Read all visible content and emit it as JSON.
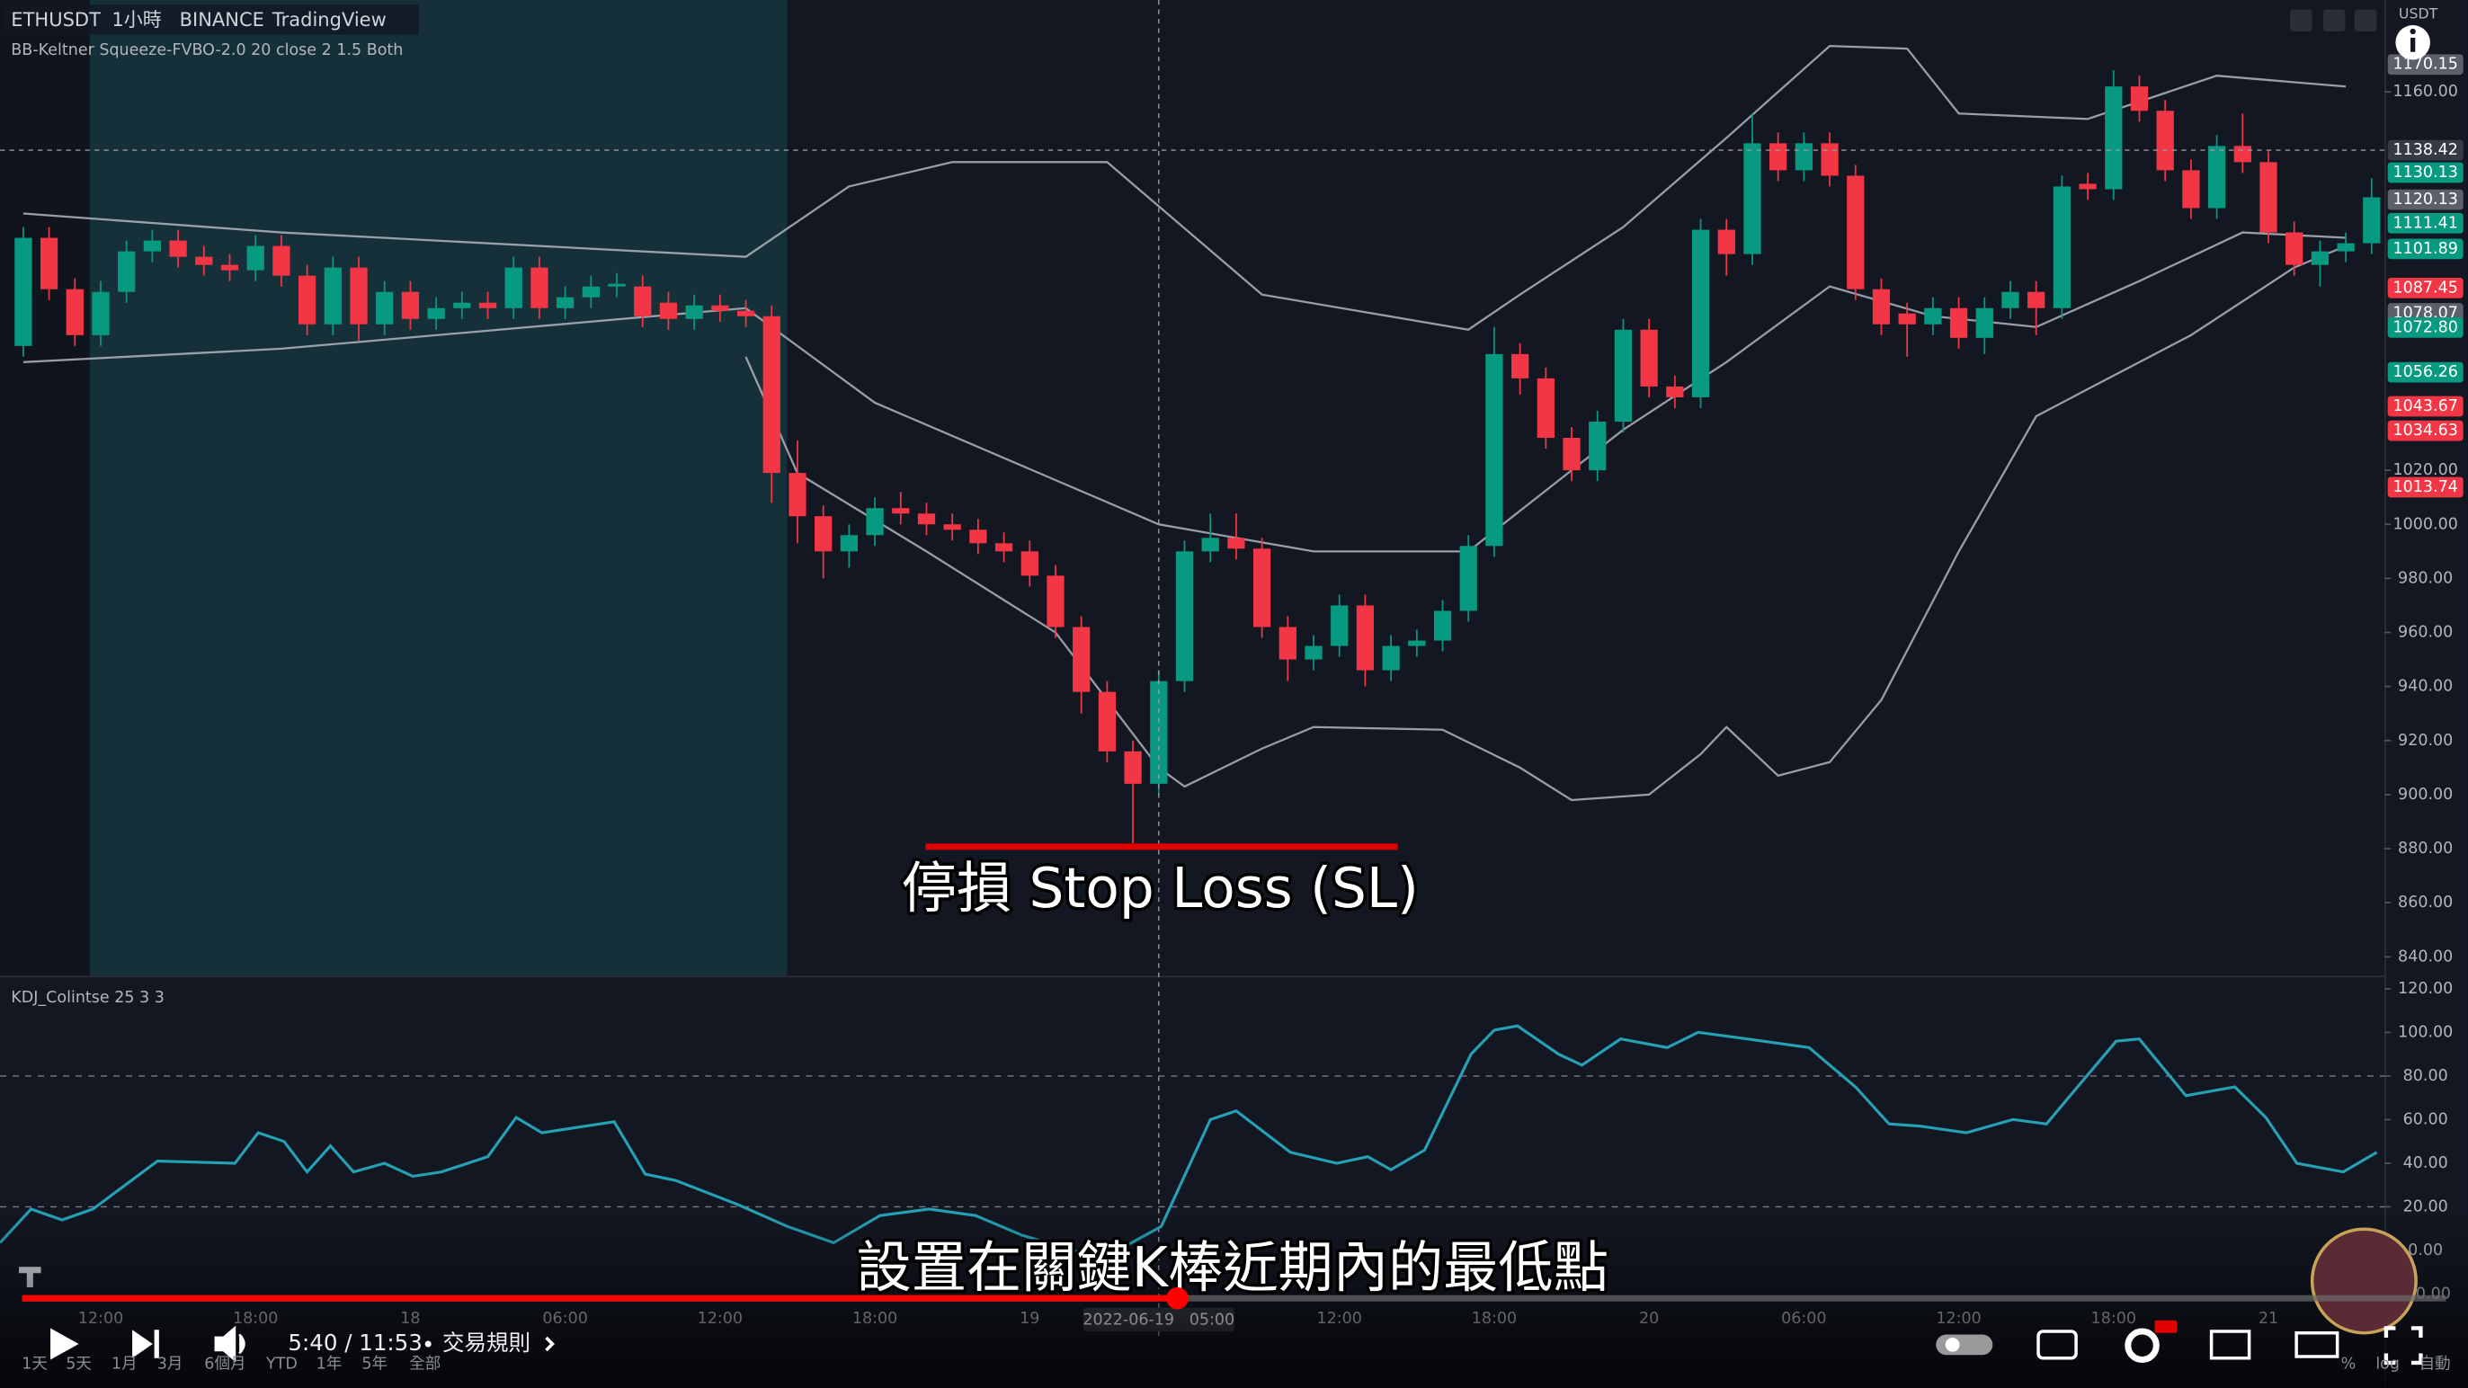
{
  "header": {
    "symbol": "ETHUSDT",
    "interval": "1小時",
    "exchange": "BINANCE",
    "source": "TradingView",
    "indicator": "BB-Keltner Squeeze-FVBO-2.0 20 close 2 1.5 Both",
    "currency": "USDT"
  },
  "chart_data": [
    {
      "type": "candlestick",
      "up_color": "#089981",
      "down_color": "#f23645",
      "open": [
        1066,
        1106,
        1087,
        1070,
        1086,
        1101,
        1105,
        1099,
        1096,
        1094,
        1103,
        1092,
        1074,
        1095,
        1074,
        1086,
        1076,
        1080,
        1082,
        1080,
        1095,
        1080,
        1084,
        1088,
        1088,
        1082,
        1076,
        1081,
        1079,
        1077,
        1019,
        1003,
        990,
        996,
        1006,
        1004,
        1000,
        998,
        993,
        990,
        981,
        962,
        938,
        916,
        904,
        942,
        990,
        995,
        991,
        962,
        950,
        955,
        970,
        946,
        955,
        957,
        968,
        992,
        1063,
        1054,
        1032,
        1020,
        1038,
        1072,
        1051,
        1047,
        1109,
        1100,
        1141,
        1131,
        1141,
        1129,
        1087,
        1078,
        1074,
        1080,
        1069,
        1080,
        1086,
        1080,
        1126,
        1124,
        1162,
        1153,
        1131,
        1117,
        1140,
        1134,
        1108,
        1096,
        1101,
        1104
      ],
      "high": [
        1110,
        1110,
        1091,
        1090,
        1105,
        1109,
        1109,
        1103,
        1100,
        1107,
        1107,
        1096,
        1099,
        1099,
        1090,
        1090,
        1084,
        1086,
        1086,
        1099,
        1099,
        1088,
        1092,
        1093,
        1092,
        1086,
        1085,
        1085,
        1083,
        1081,
        1031,
        1007,
        1000,
        1010,
        1012,
        1008,
        1004,
        1002,
        997,
        994,
        985,
        966,
        942,
        920,
        946,
        994,
        1004,
        1004,
        995,
        966,
        959,
        974,
        974,
        959,
        961,
        972,
        996,
        1073,
        1067,
        1058,
        1036,
        1042,
        1076,
        1076,
        1055,
        1113,
        1113,
        1152,
        1145,
        1145,
        1145,
        1133,
        1091,
        1082,
        1084,
        1084,
        1084,
        1090,
        1090,
        1129,
        1130,
        1168,
        1166,
        1157,
        1135,
        1144,
        1152,
        1138,
        1112,
        1105,
        1108,
        1128
      ],
      "low": [
        1062,
        1083,
        1066,
        1066,
        1082,
        1097,
        1095,
        1092,
        1090,
        1090,
        1088,
        1070,
        1070,
        1068,
        1070,
        1072,
        1072,
        1076,
        1076,
        1076,
        1076,
        1076,
        1080,
        1084,
        1073,
        1072,
        1072,
        1075,
        1073,
        1008,
        993,
        980,
        984,
        992,
        1000,
        996,
        994,
        989,
        986,
        977,
        958,
        930,
        912,
        882,
        900,
        938,
        986,
        987,
        958,
        942,
        946,
        951,
        940,
        942,
        951,
        953,
        964,
        988,
        1048,
        1028,
        1016,
        1016,
        1034,
        1047,
        1043,
        1043,
        1092,
        1096,
        1127,
        1127,
        1125,
        1083,
        1070,
        1062,
        1070,
        1065,
        1063,
        1076,
        1070,
        1076,
        1120,
        1120,
        1149,
        1127,
        1113,
        1113,
        1130,
        1104,
        1092,
        1088,
        1097,
        1100
      ],
      "close": [
        1106,
        1087,
        1070,
        1086,
        1101,
        1105,
        1099,
        1096,
        1094,
        1103,
        1092,
        1074,
        1095,
        1074,
        1086,
        1076,
        1080,
        1082,
        1080,
        1095,
        1080,
        1084,
        1088,
        1089,
        1077,
        1076,
        1081,
        1079,
        1077,
        1019,
        1003,
        990,
        996,
        1006,
        1004,
        1000,
        998,
        993,
        990,
        981,
        962,
        938,
        916,
        904,
        942,
        990,
        995,
        991,
        962,
        950,
        955,
        970,
        946,
        955,
        957,
        968,
        992,
        1063,
        1054,
        1032,
        1020,
        1038,
        1072,
        1051,
        1047,
        1109,
        1100,
        1141,
        1131,
        1141,
        1129,
        1087,
        1074,
        1074,
        1080,
        1069,
        1080,
        1086,
        1080,
        1125,
        1124,
        1162,
        1153,
        1131,
        1117,
        1140,
        1134,
        1108,
        1096,
        1101,
        1104,
        1121
      ],
      "lines": [
        {
          "color": "#b2b5be",
          "x": [
            0,
            10,
            28,
            32,
            36,
            42,
            48,
            56,
            58,
            62,
            66,
            70,
            73,
            75,
            80,
            85,
            90
          ],
          "values": [
            1115,
            1108,
            1099,
            1125,
            1134,
            1134,
            1085,
            1072,
            1085,
            1110,
            1143,
            1177,
            1176,
            1152,
            1150,
            1166,
            1162
          ]
        },
        {
          "color": "#b2b5be",
          "x": [
            0,
            10,
            28,
            33,
            44,
            50,
            56,
            58,
            62,
            66,
            70,
            74,
            78,
            82,
            86,
            90
          ],
          "values": [
            1060,
            1065,
            1080,
            1045,
            1000,
            990,
            990,
            1005,
            1035,
            1060,
            1088,
            1077,
            1073,
            1090,
            1108,
            1106
          ]
        },
        {
          "color": "#b2b5be",
          "x": [
            28,
            30,
            35,
            40,
            44,
            45,
            48,
            50,
            55,
            58,
            60,
            63,
            65,
            66,
            68,
            70,
            72,
            75,
            78,
            80,
            84,
            88,
            90
          ],
          "values": [
            1062,
            1019,
            990,
            960,
            910,
            903,
            917,
            925,
            924,
            910,
            898,
            900,
            915,
            925,
            907,
            912,
            935,
            990,
            1040,
            1050,
            1070,
            1095,
            1103
          ]
        }
      ],
      "xlim": [
        -0.9,
        91.5
      ],
      "ylim": [
        833,
        1194
      ],
      "xticks": [
        {
          "value": 3,
          "label": "12:00"
        },
        {
          "value": 9,
          "label": "18:00"
        },
        {
          "value": 15,
          "label": "18"
        },
        {
          "value": 21,
          "label": "06:00"
        },
        {
          "value": 27,
          "label": "12:00"
        },
        {
          "value": 33,
          "label": "18:00"
        },
        {
          "value": 39,
          "label": "19"
        },
        {
          "value": 51,
          "label": "12:00"
        },
        {
          "value": 57,
          "label": "18:00"
        },
        {
          "value": 63,
          "label": "20"
        },
        {
          "value": 69,
          "label": "06:00"
        },
        {
          "value": 75,
          "label": "12:00"
        },
        {
          "value": 81,
          "label": "18:00"
        },
        {
          "value": 87,
          "label": "21"
        }
      ],
      "yticks": [
        {
          "value": 1160,
          "label": "1160.00"
        },
        {
          "value": 1020,
          "label": "1020.00"
        },
        {
          "value": 1000,
          "label": "1000.00"
        },
        {
          "value": 980,
          "label": "980.00"
        },
        {
          "value": 960,
          "label": "960.00"
        },
        {
          "value": 940,
          "label": "940.00"
        },
        {
          "value": 920,
          "label": "920.00"
        },
        {
          "value": 900,
          "label": "900.00"
        },
        {
          "value": 880,
          "label": "880.00"
        },
        {
          "value": 860,
          "label": "860.00"
        },
        {
          "value": 840,
          "label": "840.00"
        }
      ],
      "grid": false,
      "price_labels": [
        1170.15,
        1130.13,
        1120.13,
        1111.41,
        1101.89,
        1087.45,
        1078.07,
        {
          "value": 1072.8,
          "label": "1072.80"
        },
        1056.26,
        1043.67,
        1034.63,
        1013.74
      ],
      "price_label_colors": [
        "#5d606b",
        "#089981",
        "#5d606b",
        "#089981",
        "#089981",
        "#f23645",
        "#5d606b",
        "#089981",
        "#089981",
        "#f23645",
        "#f23645",
        "#f23645"
      ],
      "crosshair": {
        "x": 44,
        "label": "2022-06-19   05:00",
        "price": 1138.42
      }
    },
    {
      "type": "line",
      "title": "KDJ_Colintse 25 3 3",
      "color": "#26a0b5",
      "x": [
        -0.9,
        0.3,
        1.5,
        2.7,
        5.2,
        8.2,
        9.1,
        10.1,
        11,
        11.9,
        12.8,
        14,
        15.1,
        16.2,
        18,
        19.1,
        20.1,
        22.9,
        24.1,
        25.3,
        27.7,
        29.6,
        31.4,
        33.2,
        35.1,
        36.9,
        38.7,
        41.8,
        44.1,
        46,
        47,
        49.1,
        50.9,
        52.1,
        53,
        54.3,
        56.1,
        57,
        57.9,
        59.5,
        60.4,
        61.9,
        63.7,
        64.9,
        66.8,
        69.2,
        71,
        72.3,
        73.5,
        75.3,
        77.1,
        78.4,
        79.6,
        81.1,
        82,
        83.8,
        85.7,
        86.9,
        88.1,
        89.9,
        91.2
      ],
      "values": [
        3.5,
        19,
        14,
        19,
        41,
        40,
        54,
        50,
        36,
        48,
        36,
        40,
        34,
        36,
        43,
        61,
        54,
        59,
        35,
        32,
        21,
        11,
        3.5,
        16,
        19,
        16,
        7,
        -4,
        11,
        60,
        64,
        45,
        40,
        43,
        37,
        46,
        90,
        101,
        103,
        90,
        85,
        97,
        93,
        100,
        97,
        93,
        75,
        58,
        57,
        54,
        60,
        58,
        75,
        96,
        97,
        71,
        75,
        61,
        40,
        36,
        45
      ],
      "xlim": [
        -0.9,
        91.5
      ],
      "ylim": [
        -40,
        126
      ],
      "yticks": [
        {
          "value": 120,
          "label": "120.00"
        },
        {
          "value": 100,
          "label": "100.00"
        },
        {
          "value": 80,
          "label": "80.00"
        },
        {
          "value": 60,
          "label": "60.00"
        },
        {
          "value": 40,
          "label": "40.00"
        },
        {
          "value": 20,
          "label": "20.00"
        },
        {
          "value": 0,
          "label": "0.00"
        },
        {
          "value": -20,
          "label": "-20.00"
        }
      ],
      "levels": [
        80,
        20
      ]
    }
  ],
  "subtitles": [
    "停損 Stop Loss (SL)",
    "設置在關鍵K棒近期內的最低點"
  ],
  "player": {
    "time": "5:40 / 11:53",
    "chapter": "交易規則"
  },
  "timeframes": [
    "1天",
    "5天",
    "1月",
    "3月",
    "6個月",
    "YTD",
    "1年",
    "5年",
    "全部"
  ],
  "scale_buttons": [
    "%",
    "log",
    "自動"
  ]
}
